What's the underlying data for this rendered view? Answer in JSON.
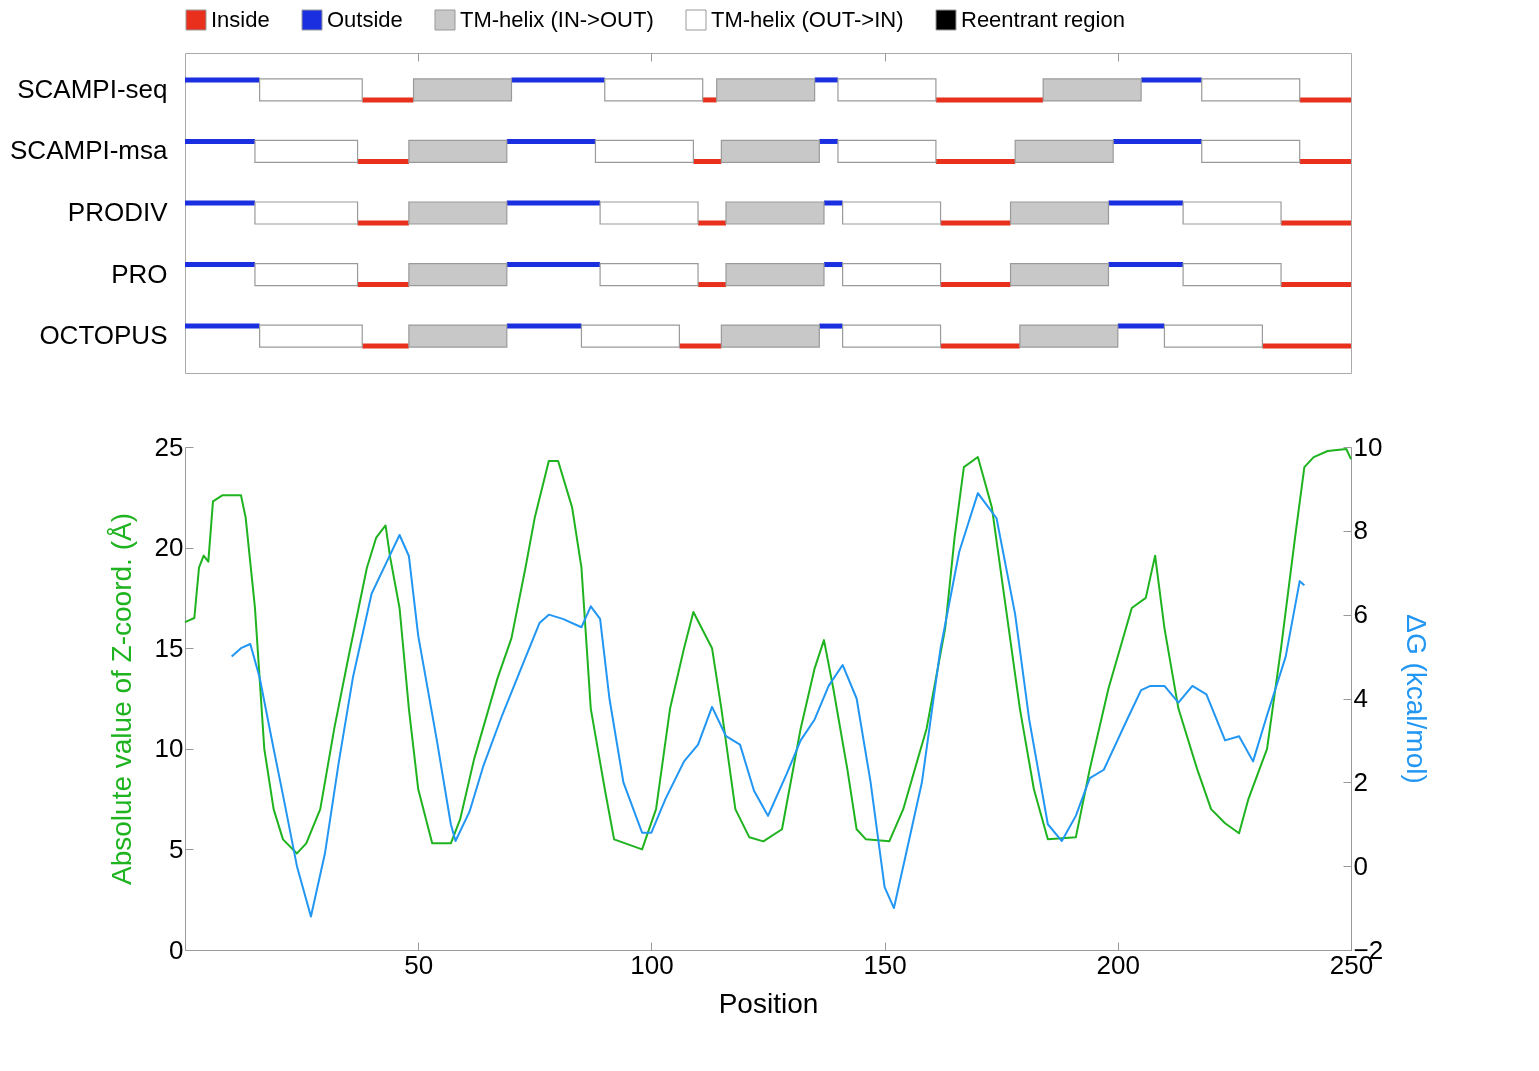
{
  "chart_data": [
    {
      "type": "bar",
      "orientation": "horizontal",
      "categories": [
        "SCAMPI-seq",
        "SCAMPI-msa",
        "PRODIV",
        "PRO",
        "OCTOPUS"
      ],
      "xlim": [
        0,
        250
      ],
      "xticks": [
        50,
        100,
        150,
        200
      ],
      "tick_labels": "y",
      "legend": "top",
      "series": [
        {
          "name": "Inside",
          "color": "#e8301c",
          "base": [
            38,
            37,
            37,
            37,
            38
          ],
          "values": [
            11,
            11,
            11,
            11,
            10
          ]
        },
        {
          "color": "#e8301c",
          "base": [
            111,
            109,
            110,
            110,
            106
          ],
          "values": [
            3,
            6,
            6,
            6,
            9
          ]
        },
        {
          "color": "#e8301c",
          "base": [
            161,
            161,
            162,
            162,
            162
          ],
          "values": [
            23,
            17,
            15,
            15,
            17
          ]
        },
        {
          "color": "#e8301c",
          "base": [
            239,
            239,
            235,
            235,
            231
          ],
          "values": [
            11,
            11,
            15,
            15,
            19
          ]
        },
        {
          "name": "Outside",
          "color": "#1a2fe0",
          "base": [
            0,
            0,
            0,
            0,
            0
          ],
          "values": [
            16,
            15,
            15,
            15,
            16
          ]
        },
        {
          "color": "#1a2fe0",
          "base": [
            70,
            69,
            69,
            69,
            69
          ],
          "values": [
            20,
            19,
            20,
            20,
            16
          ]
        },
        {
          "color": "#1a2fe0",
          "base": [
            135,
            136,
            137,
            137,
            136
          ],
          "values": [
            5,
            4,
            4,
            4,
            5
          ]
        },
        {
          "color": "#1a2fe0",
          "base": [
            205,
            199,
            198,
            198,
            200
          ],
          "values": [
            13,
            19,
            16,
            16,
            10
          ]
        },
        {
          "name": "TM-helix (IN->OUT)",
          "color": "#c8c8c8",
          "base": [
            49,
            48,
            48,
            48,
            48
          ],
          "values": [
            21,
            21,
            21,
            21,
            21
          ]
        },
        {
          "color": "#c8c8c8",
          "base": [
            114,
            115,
            116,
            116,
            115
          ],
          "values": [
            21,
            21,
            21,
            21,
            21
          ]
        },
        {
          "color": "#c8c8c8",
          "base": [
            184,
            178,
            177,
            177,
            179
          ],
          "values": [
            21,
            21,
            21,
            21,
            21
          ]
        },
        {
          "name": "TM-helix (OUT->IN)",
          "color": "#ffffff",
          "base": [
            16,
            15,
            15,
            15,
            16
          ],
          "values": [
            22,
            22,
            22,
            22,
            22
          ]
        },
        {
          "color": "#ffffff",
          "base": [
            90,
            88,
            89,
            89,
            85
          ],
          "values": [
            21,
            21,
            21,
            21,
            21
          ]
        },
        {
          "color": "#ffffff",
          "base": [
            140,
            140,
            141,
            141,
            141
          ],
          "values": [
            21,
            21,
            21,
            21,
            21
          ]
        },
        {
          "color": "#ffffff",
          "base": [
            218,
            218,
            214,
            214,
            210
          ],
          "values": [
            21,
            21,
            21,
            21,
            21
          ]
        },
        {
          "name": "Reentrant region",
          "color": "#000000",
          "base": [
            null,
            null,
            null,
            null,
            null
          ],
          "values": [
            null,
            null,
            null,
            null,
            null
          ]
        }
      ]
    },
    {
      "type": "line",
      "xlabel": "Position",
      "ylabel": "Absolute value of Z-coord. (Å)",
      "y2label": "ΔG (kcal/mol)",
      "xlim": [
        0,
        250
      ],
      "xticks": [
        50,
        100,
        150,
        200,
        250
      ],
      "ylim": [
        0,
        25
      ],
      "yticks": [
        0,
        5,
        10,
        15,
        20,
        25
      ],
      "y2lim": [
        -2,
        10
      ],
      "y2ticks": [
        -2,
        0,
        2,
        4,
        6,
        8,
        10
      ],
      "series": [
        {
          "color": "#1fb31f",
          "x": [
            0,
            2,
            3,
            4,
            5,
            6,
            8,
            12,
            13,
            15,
            17,
            19,
            21,
            24,
            26,
            29,
            32,
            35,
            39,
            41,
            43,
            44,
            46,
            48,
            50,
            53,
            57,
            59,
            62,
            67,
            70,
            73,
            75,
            78,
            80,
            83,
            85,
            87,
            90,
            92,
            98,
            101,
            104,
            107,
            109,
            113,
            115,
            118,
            121,
            124,
            128,
            132,
            135,
            137,
            139,
            142,
            144,
            146,
            151,
            154,
            159,
            163,
            165,
            167,
            170,
            173,
            176,
            179,
            182,
            185,
            191,
            194,
            198,
            203,
            206,
            208,
            210,
            213,
            217,
            220,
            223,
            226,
            228,
            232,
            235,
            238,
            240,
            242,
            245,
            249,
            250
          ],
          "values": [
            16.3,
            16.5,
            19,
            19.6,
            19.3,
            22.3,
            22.6,
            22.6,
            21.5,
            17,
            10,
            7,
            5.5,
            4.8,
            5.3,
            7,
            11,
            14.5,
            19,
            20.5,
            21.1,
            19.5,
            17,
            12,
            8,
            5.3,
            5.3,
            6.5,
            9.5,
            13.5,
            15.5,
            19,
            21.5,
            24.3,
            24.3,
            22,
            19,
            12,
            8,
            5.5,
            5,
            7,
            12,
            15,
            16.8,
            15,
            12,
            7,
            5.6,
            5.4,
            6,
            11,
            14,
            15.4,
            13,
            9,
            6,
            5.5,
            5.4,
            7,
            11,
            16,
            20.5,
            24,
            24.5,
            22,
            17,
            12,
            8,
            5.5,
            5.6,
            9,
            13,
            17,
            17.5,
            19.6,
            16,
            12,
            9,
            7,
            6.3,
            5.8,
            7.5,
            10,
            15,
            20.5,
            24,
            24.5,
            24.8,
            24.9,
            24.4
          ]
        },
        {
          "color": "#2196f3",
          "axis": "y2",
          "x": [
            10,
            12,
            14,
            16,
            19,
            21,
            24,
            27,
            30,
            33,
            36,
            40,
            43,
            46,
            48,
            50,
            54,
            57,
            58,
            61,
            64,
            68,
            72,
            76,
            78,
            81,
            85,
            87,
            89,
            91,
            94,
            98,
            100,
            103,
            107,
            110,
            113,
            116,
            119,
            122,
            125,
            129,
            132,
            135,
            138,
            141,
            144,
            147,
            150,
            152,
            154,
            158,
            162,
            166,
            170,
            174,
            178,
            181,
            185,
            188,
            191,
            194,
            197,
            202,
            205,
            207,
            210,
            213,
            216,
            219,
            223,
            226,
            229,
            232,
            236,
            239,
            240
          ],
          "values": [
            5,
            5.2,
            5.3,
            4.5,
            2.8,
            1.7,
            0,
            -1.2,
            0.3,
            2.5,
            4.5,
            6.5,
            7.2,
            7.9,
            7.4,
            5.5,
            3,
            1,
            0.6,
            1.3,
            2.4,
            3.6,
            4.7,
            5.8,
            6,
            5.9,
            5.7,
            6.2,
            5.9,
            4,
            2,
            0.8,
            0.8,
            1.6,
            2.5,
            2.9,
            3.8,
            3.1,
            2.9,
            1.8,
            1.2,
            2.2,
            3,
            3.5,
            4.3,
            4.8,
            4,
            2,
            -0.5,
            -1,
            0,
            2,
            5.2,
            7.5,
            8.9,
            8.3,
            6,
            3.5,
            1,
            0.6,
            1.2,
            2.1,
            2.3,
            3.5,
            4.2,
            4.3,
            4.3,
            3.9,
            4.3,
            4.1,
            3,
            3.1,
            2.5,
            3.6,
            5,
            6.8,
            6.7
          ]
        }
      ]
    }
  ]
}
